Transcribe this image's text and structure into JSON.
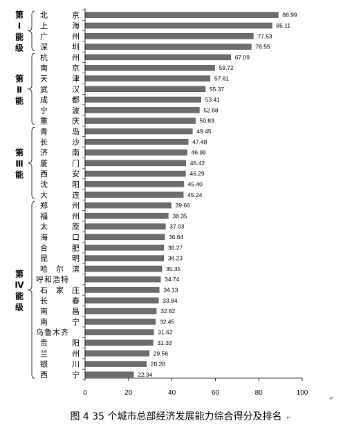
{
  "caption": "图 4   35 个城市总部经济发展能力综合得分及排名",
  "groups": [
    {
      "label": "第Ⅰ能级"
    },
    {
      "label": "第Ⅱ能"
    },
    {
      "label": "第Ⅲ能"
    },
    {
      "label": "第Ⅳ能级"
    }
  ],
  "chart_data": {
    "type": "bar",
    "orientation": "horizontal",
    "title": "",
    "xlabel": "",
    "ylabel": "",
    "xlim": [
      0,
      100
    ],
    "x_ticks": [
      0,
      20,
      40,
      60,
      80,
      100
    ],
    "grid": false,
    "categories": [
      "北京",
      "上海",
      "广州",
      "深圳",
      "杭州",
      "南京",
      "天津",
      "武汉",
      "成都",
      "宁波",
      "重庆",
      "青岛",
      "长沙",
      "济南",
      "厦门",
      "西安",
      "沈阳",
      "大连",
      "郑州",
      "福州",
      "太原",
      "海口",
      "合肥",
      "昆明",
      "哈尔滨",
      "呼和浩特",
      "石家庄",
      "长春",
      "南昌",
      "南宁",
      "乌鲁木齐",
      "贵阳",
      "兰州",
      "银川",
      "西宁"
    ],
    "values": [
      88.99,
      86.11,
      77.53,
      76.55,
      67.09,
      59.72,
      57.61,
      55.37,
      53.41,
      52.68,
      50.83,
      49.45,
      47.48,
      46.99,
      46.42,
      46.29,
      45.4,
      45.24,
      39.66,
      38.35,
      37.03,
      36.64,
      36.27,
      36.23,
      35.35,
      34.74,
      34.13,
      33.84,
      32.82,
      32.45,
      31.62,
      31.33,
      29.56,
      28.28,
      22.34
    ],
    "value_labels": [
      "88.99",
      "86.11",
      "77.53",
      "76.55",
      "67.09",
      "59.72",
      "57.61",
      "55.37",
      "53.41",
      "52.68",
      "50.83",
      "49.45",
      "47.48",
      "46.99",
      "46.42",
      "46.29",
      "45.40",
      "45.24",
      "39.66",
      "38.35",
      "37.03",
      "36.64",
      "36.27",
      "36.23",
      "35.35",
      "34.74",
      "34.13",
      "33.84",
      "32.82",
      "32.45",
      "31.62",
      "31.33",
      "29.56",
      "28.28",
      "22.34"
    ],
    "tiers": [
      [
        0,
        3
      ],
      [
        4,
        10
      ],
      [
        11,
        17
      ],
      [
        18,
        34
      ]
    ],
    "bar_color": "#6d6d6d"
  }
}
